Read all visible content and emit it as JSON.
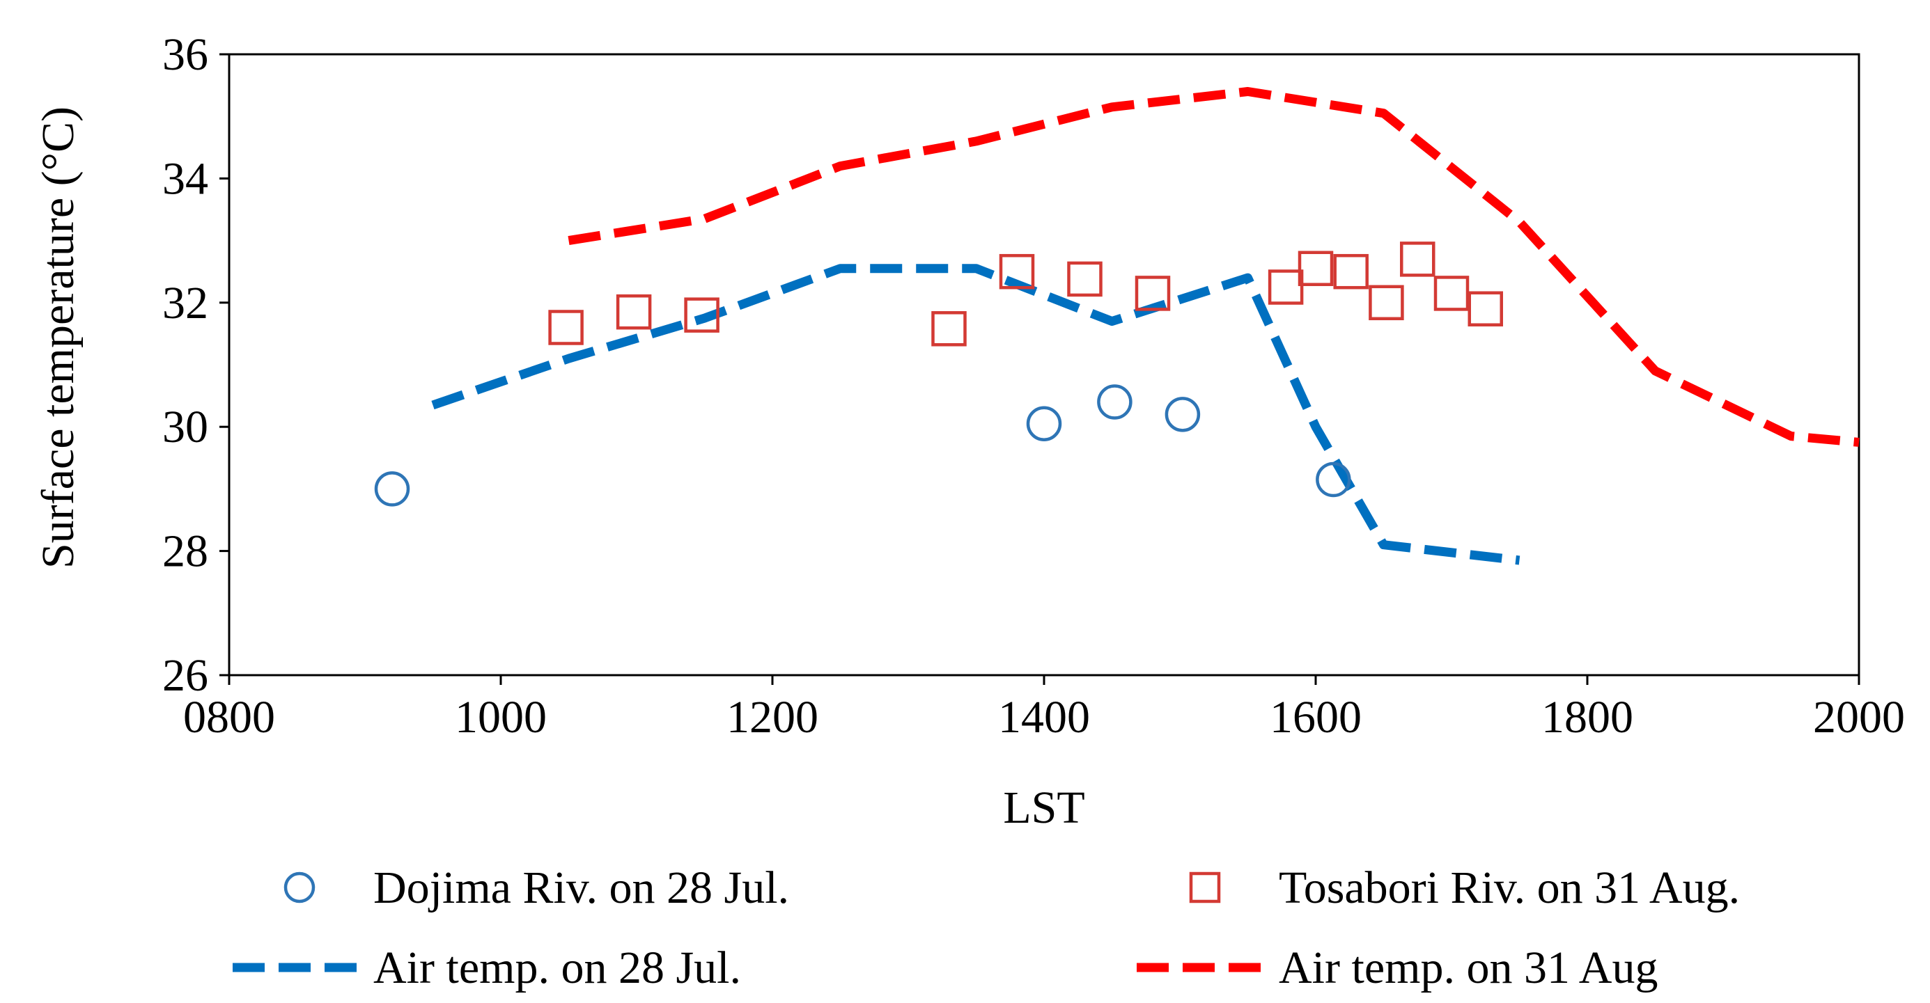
{
  "chart_data": {
    "type": "scatter",
    "title": "",
    "xlabel": "LST",
    "ylabel": "Surface temperature (°C)",
    "xlim": [
      800,
      2000
    ],
    "ylim": [
      26,
      36
    ],
    "x_ticks": [
      800,
      1000,
      1200,
      1400,
      1600,
      1800,
      2000
    ],
    "x_tick_labels": [
      "0800",
      "1000",
      "1200",
      "1400",
      "1600",
      "1800",
      "2000"
    ],
    "y_ticks": [
      26,
      28,
      30,
      32,
      34,
      36
    ],
    "y_tick_labels": [
      "26",
      "28",
      "30",
      "32",
      "34",
      "36"
    ],
    "grid": false,
    "legend_position": "bottom",
    "series": [
      {
        "name": "Dojima Riv. on 28 Jul.",
        "kind": "marker-circle",
        "color": "#2e75b6",
        "x": [
          920,
          1400,
          1452,
          1502,
          1613
        ],
        "y": [
          29.0,
          30.05,
          30.4,
          30.2,
          29.15
        ]
      },
      {
        "name": "Tosabori Riv. on 31 Aug.",
        "kind": "marker-square",
        "color": "#d33a34",
        "x": [
          1048,
          1098,
          1148,
          1330,
          1380,
          1430,
          1480,
          1578,
          1600,
          1626,
          1652,
          1675,
          1700,
          1725
        ],
        "y": [
          31.6,
          31.85,
          31.8,
          31.58,
          32.5,
          32.38,
          32.15,
          32.25,
          32.55,
          32.5,
          32.0,
          32.7,
          32.15,
          31.9
        ]
      },
      {
        "name": "Air temp. on 28 Jul.",
        "kind": "dashed-line",
        "color": "#0070c0",
        "x": [
          950,
          1050,
          1150,
          1250,
          1350,
          1450,
          1550,
          1600,
          1650,
          1750
        ],
        "y": [
          30.35,
          31.1,
          31.75,
          32.55,
          32.55,
          31.7,
          32.4,
          30.0,
          28.1,
          27.85
        ]
      },
      {
        "name": "Air temp. on 31 Aug",
        "kind": "dashed-line",
        "color": "#ff0000",
        "x": [
          1050,
          1150,
          1250,
          1350,
          1450,
          1550,
          1650,
          1750,
          1850,
          1950,
          2000
        ],
        "y": [
          33.0,
          33.35,
          34.2,
          34.6,
          35.15,
          35.4,
          35.05,
          33.3,
          30.9,
          29.85,
          29.75
        ]
      }
    ]
  }
}
